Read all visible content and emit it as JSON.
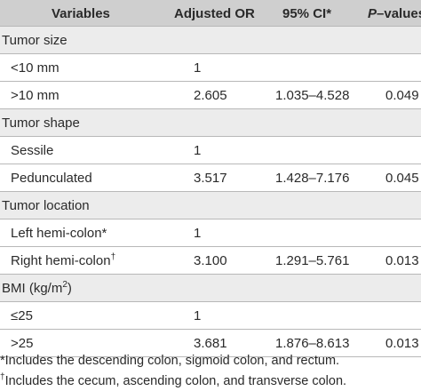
{
  "header": {
    "variables": "Variables",
    "or": "Adjusted OR",
    "ci": "95% CI*",
    "p_italic": "P",
    "p_rest": "–values"
  },
  "sections": [
    {
      "title": "Tumor size",
      "rows": [
        {
          "label": "<10 mm",
          "values": [
            "1"
          ]
        },
        {
          "label": ">10 mm",
          "values": [
            "2.605",
            "1.035–4.528",
            "0.049"
          ]
        }
      ]
    },
    {
      "title": "Tumor shape",
      "rows": [
        {
          "label": "Sessile",
          "values": [
            "1"
          ]
        },
        {
          "label": "Pedunculated",
          "values": [
            "3.517",
            "1.428–7.176",
            "0.045"
          ]
        }
      ]
    },
    {
      "title": "Tumor location",
      "rows": [
        {
          "label": "Left hemi-colon*",
          "values": [
            "1"
          ]
        },
        {
          "label": "Right hemi-colon",
          "sup": "†",
          "values": [
            "3.100",
            "1.291–5.761",
            "0.013"
          ]
        }
      ]
    },
    {
      "title": "BMI (kg/m",
      "title_sup": "2",
      "title_end": ")",
      "rows": [
        {
          "label": "≤25",
          "values": [
            "1"
          ]
        },
        {
          "label": ">25",
          "values": [
            "3.681",
            "1.876–8.613",
            "0.013"
          ]
        }
      ]
    }
  ],
  "footnotes": [
    {
      "text": "*Includes the descending colon, sigmoid colon, and rectum."
    },
    {
      "marker": "†",
      "text": "Includes the cecum, ascending colon, and transverse colon."
    }
  ]
}
